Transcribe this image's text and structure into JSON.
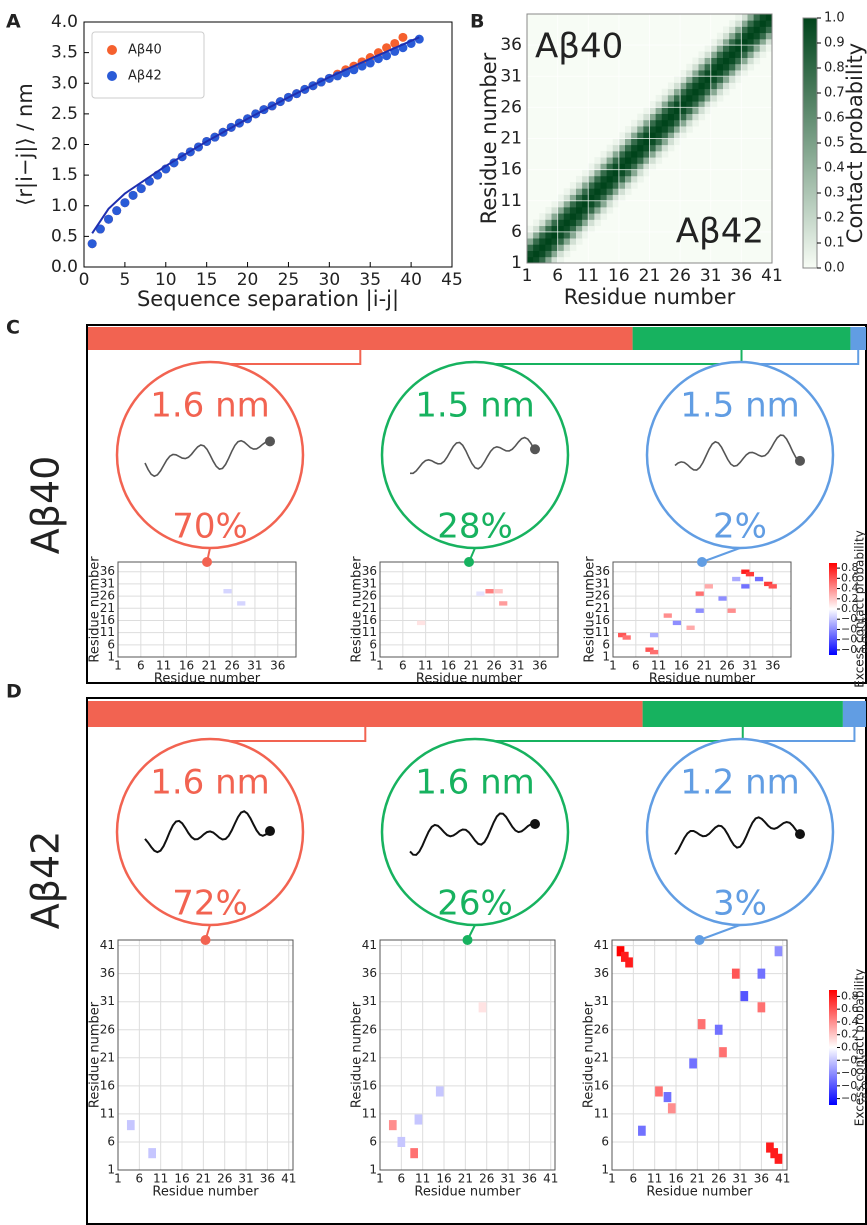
{
  "chart_data": [
    {
      "type": "scatter",
      "letter": "A",
      "xlabel": "Sequence separation |i-j|",
      "ylabel": "⟨r|i−j|⟩ / nm",
      "xlim": [
        0,
        45
      ],
      "ylim": [
        0,
        4
      ],
      "xticks": [
        0,
        5,
        10,
        15,
        20,
        25,
        30,
        35,
        40,
        45
      ],
      "yticks": [
        {
          "value": 0,
          "label": "0.0"
        },
        0.5,
        {
          "value": 1,
          "label": "1.0"
        },
        1.5,
        {
          "value": 2,
          "label": "2.0"
        },
        2.5,
        {
          "value": 3,
          "label": "3.0"
        },
        3.5,
        {
          "value": 4,
          "label": "4.0"
        }
      ],
      "legend": "upper left",
      "series": [
        {
          "name": "Aβ40",
          "color": "#f5602e",
          "mode": "markers",
          "x": [
            1,
            2,
            3,
            4,
            5,
            6,
            7,
            8,
            9,
            10,
            11,
            12,
            13,
            14,
            15,
            16,
            17,
            18,
            19,
            20,
            21,
            22,
            23,
            24,
            25,
            26,
            27,
            28,
            29,
            30,
            31,
            32,
            33,
            34,
            35,
            36,
            37,
            38,
            39
          ],
          "values": [
            0.38,
            0.62,
            0.78,
            0.92,
            1.05,
            1.17,
            1.28,
            1.4,
            1.5,
            1.6,
            1.7,
            1.8,
            1.88,
            1.96,
            2.05,
            2.12,
            2.2,
            2.28,
            2.35,
            2.42,
            2.5,
            2.57,
            2.63,
            2.7,
            2.77,
            2.83,
            2.9,
            2.96,
            3.02,
            3.08,
            3.15,
            3.22,
            3.28,
            3.35,
            3.42,
            3.5,
            3.58,
            3.65,
            3.75
          ]
        },
        {
          "name": "Aβ42",
          "color": "#2a5bd7",
          "mode": "markers",
          "x": [
            1,
            2,
            3,
            4,
            5,
            6,
            7,
            8,
            9,
            10,
            11,
            12,
            13,
            14,
            15,
            16,
            17,
            18,
            19,
            20,
            21,
            22,
            23,
            24,
            25,
            26,
            27,
            28,
            29,
            30,
            31,
            32,
            33,
            34,
            35,
            36,
            37,
            38,
            39,
            40,
            41
          ],
          "values": [
            0.38,
            0.62,
            0.78,
            0.92,
            1.05,
            1.17,
            1.28,
            1.4,
            1.5,
            1.6,
            1.7,
            1.8,
            1.88,
            1.96,
            2.05,
            2.12,
            2.2,
            2.28,
            2.35,
            2.42,
            2.5,
            2.57,
            2.63,
            2.7,
            2.77,
            2.83,
            2.9,
            2.96,
            3.02,
            3.08,
            3.12,
            3.17,
            3.22,
            3.28,
            3.33,
            3.4,
            3.45,
            3.52,
            3.58,
            3.65,
            3.72
          ]
        },
        {
          "color": "#1f2fb0",
          "mode": "line",
          "x": [
            1,
            3,
            5,
            10,
            15,
            20,
            25,
            30,
            35,
            41
          ],
          "values": [
            0.55,
            0.95,
            1.2,
            1.65,
            2.05,
            2.42,
            2.77,
            3.1,
            3.4,
            3.75
          ]
        }
      ]
    },
    {
      "type": "heatmap",
      "letter": "B",
      "xlabel": "Residue number",
      "ylabel": "Residue number",
      "xlim": [
        1,
        41
      ],
      "ylim": [
        1,
        41
      ],
      "xticks": [
        1,
        6,
        11,
        16,
        21,
        26,
        31,
        36,
        41
      ],
      "yticks": [
        1,
        6,
        11,
        16,
        21,
        26,
        31,
        36
      ],
      "annotations": [
        "Aβ40",
        "Aβ42"
      ],
      "diagonal_profile": [
        1.0,
        0.95,
        0.78,
        0.45,
        0.15,
        0.04
      ],
      "cmap": [
        "#f7fcf5",
        "#00441b"
      ],
      "grid": true,
      "colorbar": {
        "label": "Contact probability",
        "clim": [
          0,
          1
        ],
        "ticks": [
          {
            "value": 0,
            "label": "0.0"
          },
          0.1,
          0.2,
          0.3,
          0.4,
          0.5,
          0.6,
          0.7,
          0.8,
          0.9,
          {
            "value": 1,
            "label": "1.0"
          }
        ]
      }
    }
  ],
  "panels": [
    {
      "letter": "C",
      "label": "Aβ40",
      "bar": {
        "values": [
          70,
          28,
          2
        ],
        "value_labels": [
          "70%",
          "28%",
          "2%"
        ],
        "colors": [
          "#f26351",
          "#17b25f",
          "#619de3"
        ]
      },
      "radii": [
        "1.6 nm",
        "1.5 nm",
        "1.5 nm"
      ],
      "maps": [
        {
          "xlim": [
            1,
            40
          ],
          "ylim": [
            1,
            40
          ],
          "xticks": [
            1,
            6,
            11,
            16,
            21,
            26,
            31,
            36
          ],
          "yticks": [
            1,
            6,
            11,
            16,
            21,
            26,
            31,
            36
          ],
          "xlabel": "Residue number",
          "ylabel": "Residue number",
          "spots": [
            [
              25,
              28,
              -0.15
            ],
            [
              28,
              23,
              -0.15
            ]
          ]
        },
        {
          "xlim": [
            1,
            40
          ],
          "ylim": [
            1,
            40
          ],
          "xticks": [
            1,
            6,
            11,
            16,
            21,
            26,
            31,
            36
          ],
          "yticks": [
            1,
            6,
            11,
            16,
            21,
            26,
            31,
            36
          ],
          "xlabel": "Residue number",
          "ylabel": "Residue number",
          "spots": [
            [
              25,
              28,
              0.45
            ],
            [
              28,
              23,
              0.35
            ],
            [
              27,
              28,
              0.2
            ],
            [
              23,
              27,
              -0.1
            ],
            [
              10,
              15,
              0.1
            ]
          ]
        },
        {
          "xlim": [
            1,
            40
          ],
          "ylim": [
            1,
            40
          ],
          "xticks": [
            1,
            6,
            11,
            16,
            21,
            26,
            31,
            36
          ],
          "yticks": [
            1,
            6,
            11,
            16,
            21,
            26,
            31,
            36
          ],
          "xlabel": "Residue number",
          "ylabel": "Residue number",
          "spots": [
            [
              30,
              36,
              0.8
            ],
            [
              31,
              35,
              0.7
            ],
            [
              35,
              31,
              0.7
            ],
            [
              36,
              30,
              0.6
            ],
            [
              3,
              10,
              0.6
            ],
            [
              4,
              9,
              0.5
            ],
            [
              9,
              4,
              0.6
            ],
            [
              10,
              3,
              0.5
            ],
            [
              20,
              27,
              0.5
            ],
            [
              27,
              20,
              0.4
            ],
            [
              13,
              18,
              0.4
            ],
            [
              18,
              13,
              0.3
            ],
            [
              10,
              10,
              -0.3
            ],
            [
              15,
              15,
              -0.4
            ],
            [
              20,
              20,
              -0.4
            ],
            [
              25,
              25,
              -0.4
            ],
            [
              30,
              30,
              -0.5
            ],
            [
              33,
              33,
              -0.5
            ],
            [
              28,
              33,
              -0.3
            ],
            [
              22,
              30,
              0.3
            ]
          ],
          "colorbar": {
            "label": "Excess contact probability",
            "clim": [
              -0.9,
              0.9
            ],
            "ticks": [
              {
                "value": -0.8,
                "label": "−0.8"
              },
              {
                "value": -0.6,
                "label": "−0.6"
              },
              {
                "value": -0.4,
                "label": "−0.4"
              },
              {
                "value": -0.2,
                "label": "−0.2"
              },
              {
                "value": 0,
                "label": "0.0"
              },
              0.2,
              0.4,
              0.6,
              0.8
            ]
          }
        }
      ]
    },
    {
      "letter": "D",
      "label": "Aβ42",
      "bar": {
        "values": [
          72,
          26,
          3
        ],
        "value_labels": [
          "72%",
          "26%",
          "3%"
        ],
        "colors": [
          "#f26351",
          "#17b25f",
          "#619de3"
        ]
      },
      "radii": [
        "1.6 nm",
        "1.6 nm",
        "1.2 nm"
      ],
      "maps": [
        {
          "xlim": [
            1,
            42
          ],
          "ylim": [
            1,
            42
          ],
          "xticks": [
            1,
            6,
            11,
            16,
            21,
            26,
            31,
            36,
            41
          ],
          "yticks": [
            1,
            6,
            11,
            16,
            21,
            26,
            31,
            36,
            41
          ],
          "xlabel": "Residue number",
          "ylabel": "Residue number",
          "spots": [
            [
              4,
              9,
              -0.2
            ],
            [
              9,
              4,
              -0.2
            ]
          ]
        },
        {
          "xlim": [
            1,
            42
          ],
          "ylim": [
            1,
            42
          ],
          "xticks": [
            1,
            6,
            11,
            16,
            21,
            26,
            31,
            36,
            41
          ],
          "yticks": [
            1,
            6,
            11,
            16,
            21,
            26,
            31,
            36,
            41
          ],
          "xlabel": "Residue number",
          "ylabel": "Residue number",
          "spots": [
            [
              4,
              9,
              0.4
            ],
            [
              9,
              4,
              0.5
            ],
            [
              25,
              30,
              0.1
            ],
            [
              6,
              6,
              -0.2
            ],
            [
              10,
              10,
              -0.2
            ],
            [
              15,
              15,
              -0.2
            ]
          ]
        },
        {
          "xlim": [
            1,
            42
          ],
          "ylim": [
            1,
            42
          ],
          "xticks": [
            1,
            6,
            11,
            16,
            21,
            26,
            31,
            36,
            41
          ],
          "yticks": [
            1,
            6,
            11,
            16,
            21,
            26,
            31,
            36,
            41
          ],
          "xlabel": "Residue number",
          "ylabel": "Residue number",
          "spots": [
            [
              3,
              40,
              0.9
            ],
            [
              4,
              39,
              0.8
            ],
            [
              5,
              38,
              0.8
            ],
            [
              39,
              4,
              0.8
            ],
            [
              38,
              5,
              0.8
            ],
            [
              40,
              3,
              0.8
            ],
            [
              30,
              36,
              0.6
            ],
            [
              36,
              30,
              0.5
            ],
            [
              12,
              15,
              0.5
            ],
            [
              15,
              12,
              0.4
            ],
            [
              22,
              27,
              0.5
            ],
            [
              27,
              22,
              0.5
            ],
            [
              8,
              8,
              -0.5
            ],
            [
              14,
              14,
              -0.5
            ],
            [
              20,
              20,
              -0.5
            ],
            [
              26,
              26,
              -0.5
            ],
            [
              32,
              32,
              -0.6
            ],
            [
              36,
              36,
              -0.5
            ],
            [
              40,
              40,
              -0.4
            ]
          ],
          "colorbar": {
            "label": "Excess contact probability",
            "clim": [
              -0.9,
              0.9
            ],
            "ticks": [
              {
                "value": -0.8,
                "label": "−0.8"
              },
              {
                "value": -0.6,
                "label": "−0.6"
              },
              {
                "value": -0.4,
                "label": "−0.4"
              },
              {
                "value": -0.2,
                "label": "−0.2"
              },
              {
                "value": 0,
                "label": "0.0"
              },
              0.2,
              0.4,
              0.6,
              0.8
            ]
          }
        }
      ]
    }
  ]
}
